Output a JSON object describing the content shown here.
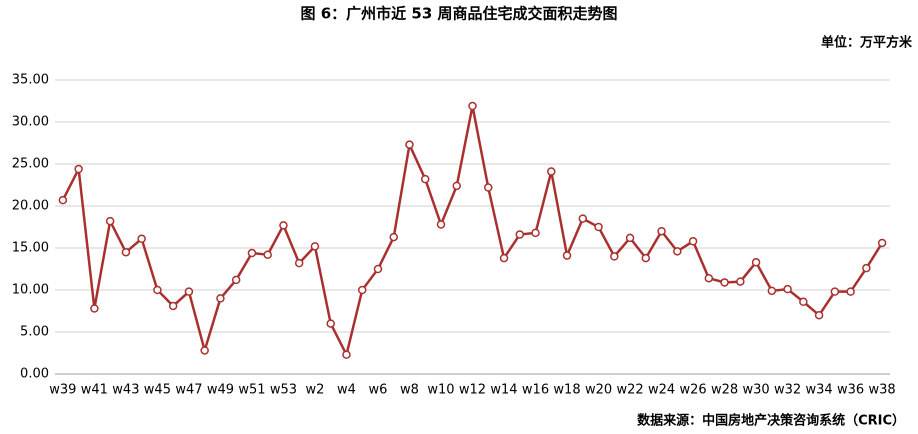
{
  "chart_data": {
    "type": "line",
    "title": "图 6：广州市近 53 周商品住宅成交面积走势图",
    "unit": "单位：万平方米",
    "source": "数据来源：中国房地产决策咨询系统（CRIC）",
    "categories": [
      "w39",
      null,
      "w41",
      null,
      "w43",
      null,
      "w45",
      null,
      "w47",
      null,
      "w49",
      null,
      "w51",
      null,
      "w53",
      null,
      "w2",
      null,
      "w4",
      null,
      "w6",
      null,
      "w8",
      null,
      "w10",
      null,
      "w12",
      null,
      "w14",
      null,
      "w16",
      null,
      "w18",
      null,
      "w20",
      null,
      "w22",
      null,
      "w24",
      null,
      "w26",
      null,
      "w28",
      null,
      "w30",
      null,
      "w32",
      null,
      "w34",
      null,
      "w36",
      null,
      "w38"
    ],
    "values": [
      20.7,
      24.4,
      7.8,
      18.2,
      14.5,
      16.1,
      10.0,
      8.1,
      9.8,
      2.8,
      9.0,
      11.2,
      14.4,
      14.2,
      17.7,
      13.2,
      15.2,
      6.0,
      2.3,
      10.0,
      12.5,
      16.3,
      27.3,
      23.2,
      17.8,
      22.4,
      31.9,
      22.2,
      13.8,
      16.6,
      16.8,
      24.1,
      14.1,
      18.5,
      17.5,
      14.0,
      16.2,
      13.8,
      17.0,
      14.6,
      15.8,
      11.4,
      10.9,
      11.0,
      13.3,
      9.9,
      10.1,
      8.6,
      7.0,
      9.8,
      9.8,
      12.6,
      15.6
    ],
    "color": "#a8312f",
    "ylim": [
      0,
      35
    ],
    "yticks": [
      {
        "value": 0,
        "label": "0.00"
      },
      {
        "value": 5,
        "label": "5.00"
      },
      {
        "value": 10,
        "label": "10.00"
      },
      {
        "value": 15,
        "label": "15.00"
      },
      {
        "value": 20,
        "label": "20.00"
      },
      {
        "value": 25,
        "label": "25.00"
      },
      {
        "value": 30,
        "label": "30.00"
      },
      {
        "value": 35,
        "label": "35.00"
      }
    ],
    "grid": true
  }
}
